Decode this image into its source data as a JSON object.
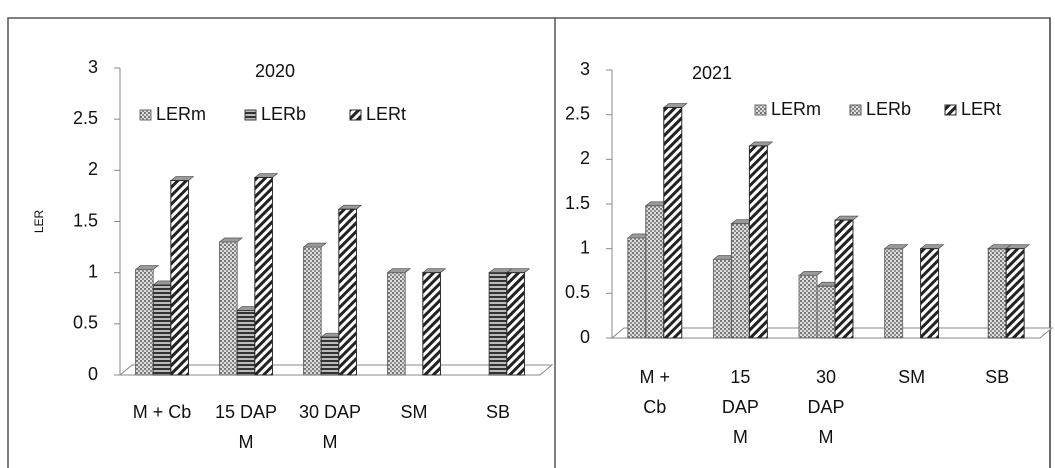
{
  "chart_data": [
    {
      "type": "bar",
      "title": "2020",
      "y_label": "LER",
      "categories": [
        "M + Cb",
        "15 DAP M",
        "30 DAP M",
        "SM",
        "SB"
      ],
      "series": [
        {
          "name": "LERm",
          "color": "#6e6e6e",
          "pattern": "dots",
          "values": [
            1.03,
            1.3,
            1.25,
            1.0,
            null
          ]
        },
        {
          "name": "LERb",
          "color": "#3c3c3c",
          "pattern": "horizontal",
          "values": [
            0.88,
            0.63,
            0.37,
            null,
            1.0
          ]
        },
        {
          "name": "LERt",
          "color": "#2a2a2a",
          "pattern": "diagonal",
          "values": [
            1.9,
            1.93,
            1.62,
            1.0,
            1.0
          ]
        }
      ],
      "ylim": [
        0,
        3
      ],
      "yticks": [
        0,
        0.5,
        1,
        1.5,
        2,
        2.5,
        3
      ],
      "legend": "top"
    },
    {
      "type": "bar",
      "title": "2021",
      "categories": [
        "M + Cb",
        "15 DAP M",
        "30 DAP M",
        "SM",
        "SB"
      ],
      "series": [
        {
          "name": "LERm",
          "color": "#6e6e6e",
          "pattern": "dots",
          "values": [
            1.12,
            0.88,
            0.7,
            1.0,
            null
          ]
        },
        {
          "name": "LERb",
          "color": "#5a5a5a",
          "pattern": "dots",
          "values": [
            1.48,
            1.28,
            0.58,
            null,
            1.0
          ]
        },
        {
          "name": "LERt",
          "color": "#2a2a2a",
          "pattern": "diagonal",
          "values": [
            2.58,
            2.15,
            1.32,
            1.0,
            1.0
          ]
        }
      ],
      "ylim": [
        0,
        3
      ],
      "yticks": [
        0,
        0.5,
        1,
        1.5,
        2,
        2.5,
        3
      ],
      "legend": "top"
    }
  ]
}
